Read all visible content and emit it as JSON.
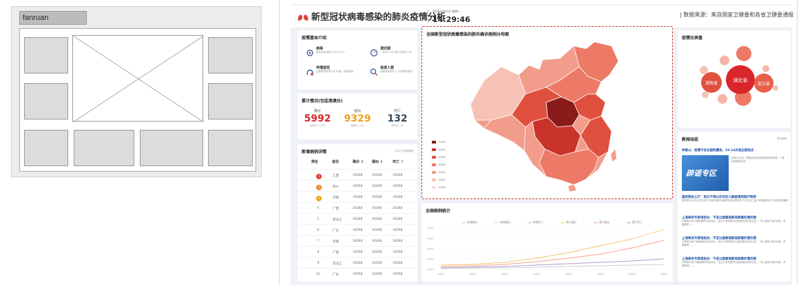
{
  "wireframe": {
    "title": "fanruan"
  },
  "header": {
    "title": "新型冠状病毒感染的肺炎疫情分析",
    "date": "2020年2月3日 星期一",
    "time": "14:29:46",
    "source": "| 数据来源：来自国家卫健委和各省卫健委通报"
  },
  "intro": {
    "title": "疫情基本介绍",
    "items": [
      {
        "label": "病毒",
        "desc": "新型冠状病毒 2019-nCoV"
      },
      {
        "label": "潜伏期",
        "desc": "一般为3-7天 最长不超过14天"
      },
      {
        "label": "传播途径",
        "desc": "主要是呼吸道飞沫 传播，接触传播"
      },
      {
        "label": "易感人群",
        "desc": "普遍易感老年人 及有基础疾病"
      }
    ]
  },
  "totals": {
    "title": "累计情况(包括港澳台)",
    "items": [
      {
        "label": "确诊",
        "value": "5992",
        "delta": "较昨日 +126",
        "color": "#d9262b"
      },
      {
        "label": "疑似",
        "value": "9329",
        "delta": "较昨日 -125",
        "color": "#f0a21a"
      },
      {
        "label": "死亡",
        "value": "132",
        "delta": "较昨日 -26",
        "color": "#34495e"
      }
    ]
  },
  "cases": {
    "title": "新增病例详情",
    "updated": "2月3日 更新数据",
    "columns": [
      "排名",
      "省份",
      "确诊 ↕",
      "疑似 ↕",
      "死亡 ↑"
    ],
    "rows": [
      {
        "rank": "1",
        "province": "江西",
        "c": "30268",
        "s": "30268",
        "d": "30268"
      },
      {
        "rank": "2",
        "province": "四川",
        "c": "30268",
        "s": "30268",
        "d": "30268"
      },
      {
        "rank": "3",
        "province": "河南",
        "c": "30268",
        "s": "30268",
        "d": "30268"
      },
      {
        "rank": "4",
        "province": "广西",
        "c": "30268",
        "s": "30268",
        "d": "30268"
      },
      {
        "rank": "5",
        "province": "黑龙江",
        "c": "30268",
        "s": "30268",
        "d": "30268"
      },
      {
        "rank": "6",
        "province": "广东",
        "c": "30268",
        "s": "30268",
        "d": "30268"
      },
      {
        "rank": "7",
        "province": "河南",
        "c": "30268",
        "s": "30268",
        "d": "30268"
      },
      {
        "rank": "8",
        "province": "广西",
        "c": "30268",
        "s": "30268",
        "d": "30268"
      },
      {
        "rank": "9",
        "province": "黑龙江",
        "c": "30268",
        "s": "30268",
        "d": "30268"
      },
      {
        "rank": "10",
        "province": "广东",
        "c": "30268",
        "s": "30268",
        "d": "30268"
      }
    ]
  },
  "map": {
    "title": "全国新型冠状病毒感染的肺炎确诊病例分布图",
    "legend": [
      "XXXX",
      "XXXX",
      "XXXX",
      "XXXX",
      "XXXX",
      "XXXX",
      "XXXX"
    ],
    "legend_colors": [
      "#8b1a1a",
      "#c9332c",
      "#e0503e",
      "#ec7a66",
      "#f29d8c",
      "#f7c2b6",
      "#fbe0d8"
    ]
  },
  "trend": {
    "title": "全国病例统计",
    "legend": [
      "新增确诊",
      "新增疑似",
      "新增死亡",
      "累计确诊",
      "累计疑似",
      "累计死亡"
    ],
    "ylabels": [
      "XXXX",
      "XXXX",
      "XXXX",
      "XXXX",
      "XXXX"
    ],
    "xlabels": [
      "XXXX",
      "XXXX",
      "XXXX",
      "XXXX",
      "XXXX",
      "XXXX",
      "XXXX",
      "XXXX"
    ]
  },
  "dashboard_bubbles": {
    "title": "疫情仪表盘",
    "bubbles": [
      {
        "label": "湖北省"
      },
      {
        "label": "浙江省"
      },
      {
        "label": "湖南省"
      }
    ]
  },
  "news": {
    "title": "新闻动态",
    "more": "更多新闻",
    "items": [
      {
        "title": "钟南山：疫情不会全国性爆发，10-14天或出现拐点",
        "body": "钟南山介绍，根据目前的疫情发展态势来看，一般疾病都有拐点"
      },
      {
        "banner": "辟谣专区"
      },
      {
        "title": "国务院办公厅：地方不得以任何名义截留调用医疗物资",
        "body": "国务院办公厅近日发布关于组织做好疫情防控重点物资生产企业复工复产和调度安排工作的紧急通知"
      },
      {
        "title": "上海商务专家组组长：不宜过度解读新冠病毒的潜伏期",
        "body": "为帮助大家了解疫情的动态变化，复旦大学附属华山医院感染科张文宏，“华山感染”相关消息。来看看吧……"
      },
      {
        "title": "上海商务专家组组长：不宜过度解读新冠病毒的潜伏期",
        "body": "为帮助大家了解疫情的动态变化，复旦大学附属华山医院感染科张文宏，“华山感染”相关消息。来看看吧……"
      },
      {
        "title": "上海商务专家组组长：不宜过度解读新冠病毒的潜伏期",
        "body": "为帮助大家了解疫情的动态变化，复旦大学附属华山医院感染科张文宏，“华山感染”相关消息。来看看吧……"
      }
    ]
  }
}
